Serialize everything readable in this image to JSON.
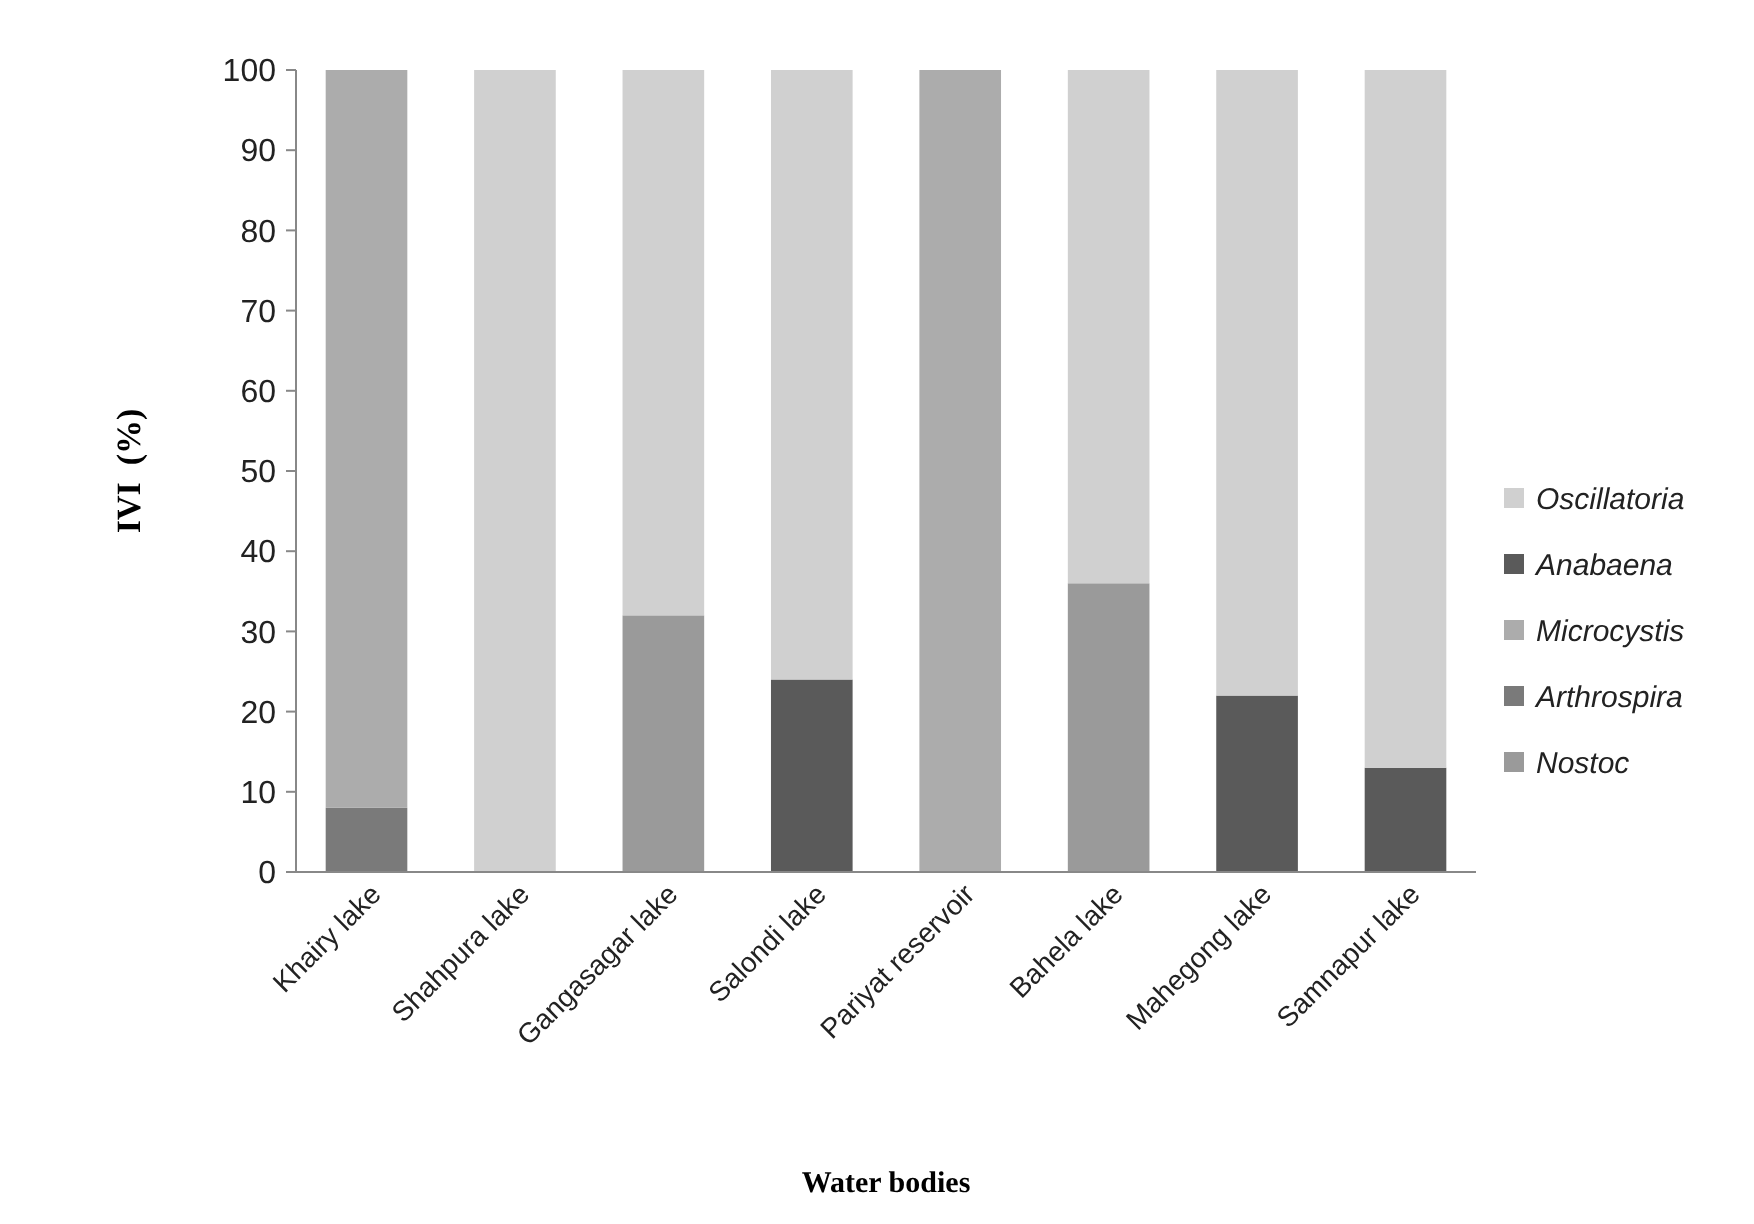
{
  "chart_data": {
    "type": "bar",
    "stacked": true,
    "xlabel": "Water bodies",
    "ylabel": "IVI  (%)",
    "categories": [
      "Khairy lake",
      "Shahpura lake",
      "Gangasagar lake",
      "Salondi lake",
      "Pariyat reservoir",
      "Bahela lake",
      "Mahegong lake",
      "Samnapur lake"
    ],
    "series": [
      {
        "name": "Nostoc",
        "color": "#9a9a9a",
        "values": [
          0,
          0,
          32,
          0,
          0,
          36,
          0,
          0
        ]
      },
      {
        "name": "Arthrospira",
        "color": "#7a7a7a",
        "values": [
          8,
          0,
          0,
          0,
          0,
          0,
          0,
          0
        ]
      },
      {
        "name": "Microcystis",
        "color": "#acacac",
        "values": [
          92,
          0,
          0,
          0,
          100,
          0,
          0,
          0
        ]
      },
      {
        "name": "Anabaena",
        "color": "#5a5a5a",
        "values": [
          0,
          0,
          0,
          24,
          0,
          0,
          22,
          13
        ]
      },
      {
        "name": "Oscillatoria",
        "color": "#d0d0d0",
        "values": [
          0,
          100,
          68,
          76,
          0,
          64,
          78,
          87
        ]
      }
    ],
    "ylim": [
      0,
      100
    ],
    "yticks": [
      0,
      10,
      20,
      30,
      40,
      50,
      60,
      70,
      80,
      90,
      100
    ],
    "grid": false,
    "legend": "right"
  }
}
